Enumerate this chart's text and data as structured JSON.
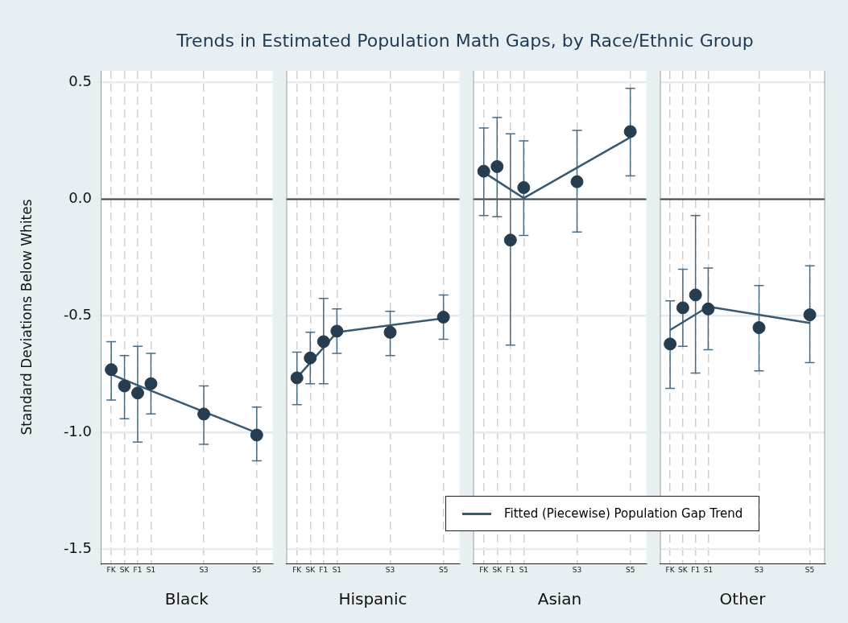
{
  "chart_data": [
    {
      "type": "scatter",
      "title": "Trends in Estimated Population Math Gaps, by Race/Ethnic Group",
      "ylabel": "Standard Deviations Below Whites",
      "xlabel": "Black",
      "categories": [
        "FK",
        "SK",
        "F1",
        "S1",
        null,
        null,
        null,
        "S3",
        null,
        null,
        null,
        "S5"
      ],
      "ylim": [
        -1.56,
        0.55
      ],
      "yticks": [
        -1.5,
        {
          "value": -1,
          "label": "-1.0"
        },
        -0.5,
        {
          "value": 0,
          "label": "0.0"
        },
        0.5
      ],
      "grid": true,
      "ref_lines": [
        {
          "axis": "y",
          "value": 0,
          "color": "#404040"
        }
      ],
      "series": [
        {
          "color": "#263d4f",
          "marker": "circle",
          "values": [
            -0.73,
            -0.8,
            -0.83,
            -0.79,
            null,
            null,
            null,
            -0.92,
            null,
            null,
            null,
            -1.01
          ],
          "errors": [
            [
              -0.86,
              -0.61
            ],
            [
              -0.94,
              -0.67
            ],
            [
              -1.04,
              -0.63
            ],
            [
              -0.92,
              -0.66
            ],
            null,
            null,
            null,
            [
              -1.05,
              -0.8
            ],
            null,
            null,
            null,
            [
              -1.12,
              -0.89
            ]
          ]
        },
        {
          "type": "line",
          "color": "#3a5a72",
          "line_style": "solid",
          "values": [
            -0.75,
            null,
            null,
            -0.82,
            null,
            null,
            null,
            null,
            null,
            null,
            null,
            -1.0
          ]
        }
      ]
    },
    {
      "type": "scatter",
      "xlabel": "Hispanic",
      "tick_labels": "x",
      "categories": [
        "FK",
        "SK",
        "F1",
        "S1",
        null,
        null,
        null,
        "S3",
        null,
        null,
        null,
        "S5"
      ],
      "ylim": [
        -1.56,
        0.55
      ],
      "yticks": [
        -1.5,
        -1,
        -0.5,
        0,
        0.5
      ],
      "grid": true,
      "ref_lines": [
        {
          "axis": "y",
          "value": 0,
          "color": "#404040"
        }
      ],
      "series": [
        {
          "color": "#263d4f",
          "marker": "circle",
          "values": [
            -0.765,
            -0.68,
            -0.61,
            -0.565,
            null,
            null,
            null,
            -0.57,
            null,
            null,
            null,
            -0.505
          ],
          "errors": [
            [
              -0.88,
              -0.655
            ],
            [
              -0.79,
              -0.57
            ],
            [
              -0.79,
              -0.425
            ],
            [
              -0.66,
              -0.47
            ],
            null,
            null,
            null,
            [
              -0.67,
              -0.48
            ],
            null,
            null,
            null,
            [
              -0.6,
              -0.41
            ]
          ]
        },
        {
          "type": "line",
          "color": "#3a5a72",
          "line_style": "solid",
          "values": [
            -0.765,
            null,
            null,
            -0.57,
            null,
            null,
            null,
            null,
            null,
            null,
            null,
            -0.51
          ]
        }
      ]
    },
    {
      "type": "scatter",
      "xlabel": "Asian",
      "tick_labels": "x",
      "categories": [
        "FK",
        "SK",
        "F1",
        "S1",
        null,
        null,
        null,
        "S3",
        null,
        null,
        null,
        "S5"
      ],
      "ylim": [
        -1.56,
        0.55
      ],
      "yticks": [
        -1.5,
        -1,
        -0.5,
        0,
        0.5
      ],
      "grid": true,
      "ref_lines": [
        {
          "axis": "y",
          "value": 0,
          "color": "#404040"
        }
      ],
      "series": [
        {
          "color": "#263d4f",
          "marker": "circle",
          "values": [
            0.12,
            0.14,
            -0.175,
            0.05,
            null,
            null,
            null,
            0.075,
            null,
            null,
            null,
            0.29
          ],
          "errors": [
            [
              -0.07,
              0.305
            ],
            [
              -0.075,
              0.35
            ],
            [
              -0.625,
              0.28
            ],
            [
              -0.155,
              0.25
            ],
            null,
            null,
            null,
            [
              -0.14,
              0.295
            ],
            null,
            null,
            null,
            [
              0.1,
              0.475
            ]
          ]
        },
        {
          "type": "line",
          "color": "#3a5a72",
          "line_style": "solid",
          "values": [
            0.115,
            null,
            null,
            0.005,
            null,
            null,
            null,
            null,
            null,
            null,
            null,
            0.265
          ]
        }
      ]
    },
    {
      "type": "scatter",
      "xlabel": "Other",
      "tick_labels": "x",
      "legend": "bottom left",
      "categories": [
        "FK",
        "SK",
        "F1",
        "S1",
        null,
        null,
        null,
        "S3",
        null,
        null,
        null,
        "S5"
      ],
      "ylim": [
        -1.56,
        0.55
      ],
      "yticks": [
        -1.5,
        -1,
        -0.5,
        0,
        0.5
      ],
      "grid": true,
      "ref_lines": [
        {
          "axis": "y",
          "value": 0,
          "color": "#404040"
        }
      ],
      "series": [
        {
          "color": "#263d4f",
          "marker": "circle",
          "values": [
            -0.62,
            -0.465,
            -0.41,
            -0.47,
            null,
            null,
            null,
            -0.55,
            null,
            null,
            null,
            -0.495
          ],
          "errors": [
            [
              -0.81,
              -0.435
            ],
            [
              -0.63,
              -0.3
            ],
            [
              -0.745,
              -0.07
            ],
            [
              -0.645,
              -0.295
            ],
            null,
            null,
            null,
            [
              -0.735,
              -0.37
            ],
            null,
            null,
            null,
            [
              -0.7,
              -0.285
            ]
          ]
        },
        {
          "type": "line",
          "name": "Fitted (Piecewise) Population Gap Trend",
          "color": "#3a5a72",
          "line_style": "solid",
          "values": [
            -0.56,
            null,
            null,
            -0.46,
            null,
            null,
            null,
            null,
            null,
            null,
            null,
            -0.53
          ]
        }
      ]
    }
  ]
}
